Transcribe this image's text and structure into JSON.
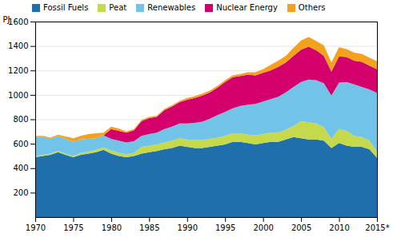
{
  "chart_data": {
    "type": "area",
    "stacked": true,
    "ylabel": "PJ",
    "x": [
      1970,
      1971,
      1972,
      1973,
      1974,
      1975,
      1976,
      1977,
      1978,
      1979,
      1980,
      1981,
      1982,
      1983,
      1984,
      1985,
      1986,
      1987,
      1988,
      1989,
      1990,
      1991,
      1992,
      1993,
      1994,
      1995,
      1996,
      1997,
      1998,
      1999,
      2000,
      2001,
      2002,
      2003,
      2004,
      2005,
      2006,
      2007,
      2008,
      2009,
      2010,
      2011,
      2012,
      2013,
      2014,
      2015
    ],
    "series": [
      {
        "name": "Fossil Fuels",
        "color": "#1f6fad",
        "values": [
          490,
          500,
          510,
          530,
          510,
          490,
          510,
          520,
          530,
          550,
          520,
          500,
          490,
          500,
          520,
          530,
          540,
          555,
          565,
          585,
          575,
          565,
          565,
          575,
          585,
          595,
          615,
          615,
          605,
          595,
          605,
          615,
          615,
          635,
          655,
          645,
          635,
          635,
          625,
          565,
          605,
          585,
          575,
          575,
          555,
          485
        ]
      },
      {
        "name": "Peat",
        "color": "#c5d94b",
        "values": [
          10,
          10,
          10,
          10,
          10,
          10,
          15,
          15,
          20,
          20,
          25,
          25,
          25,
          25,
          55,
          55,
          55,
          55,
          60,
          60,
          60,
          65,
          65,
          65,
          65,
          70,
          70,
          70,
          70,
          75,
          75,
          75,
          75,
          80,
          90,
          140,
          140,
          130,
          110,
          75,
          115,
          120,
          90,
          80,
          70,
          50
        ]
      },
      {
        "name": "Renewables",
        "color": "#72c3e8",
        "values": [
          155,
          145,
          120,
          125,
          120,
          115,
          110,
          105,
          95,
          100,
          95,
          100,
          95,
          95,
          90,
          95,
          95,
          110,
          115,
          120,
          130,
          140,
          150,
          165,
          185,
          195,
          205,
          225,
          245,
          255,
          265,
          275,
          295,
          305,
          320,
          320,
          350,
          355,
          360,
          355,
          380,
          400,
          420,
          410,
          420,
          480
        ]
      },
      {
        "name": "Nuclear Energy",
        "color": "#d4006b",
        "values": [
          0,
          0,
          0,
          0,
          0,
          0,
          0,
          0,
          0,
          0,
          80,
          80,
          80,
          90,
          120,
          130,
          130,
          155,
          165,
          175,
          195,
          205,
          215,
          215,
          225,
          245,
          255,
          245,
          245,
          235,
          235,
          235,
          245,
          245,
          255,
          265,
          270,
          245,
          225,
          195,
          215,
          205,
          195,
          205,
          195,
          195
        ]
      },
      {
        "name": "Others",
        "color": "#f5a11e",
        "values": [
          10,
          10,
          10,
          10,
          20,
          30,
          30,
          40,
          40,
          20,
          20,
          20,
          10,
          10,
          10,
          10,
          10,
          10,
          10,
          10,
          15,
          15,
          15,
          15,
          15,
          15,
          15,
          15,
          20,
          25,
          30,
          45,
          50,
          55,
          65,
          75,
          80,
          75,
          85,
          75,
          75,
          65,
          65,
          65,
          65,
          65
        ]
      }
    ],
    "xlim": [
      1970,
      2015
    ],
    "xticks": [
      1970,
      1975,
      1980,
      1985,
      1990,
      1995,
      2000,
      2005,
      2010,
      {
        "value": 2015,
        "label": "2015*"
      }
    ],
    "ylim": [
      0,
      1600
    ],
    "yticks": [
      200,
      400,
      600,
      800,
      1000,
      1200,
      1400,
      1600
    ],
    "grid": true,
    "legend": "upper left"
  }
}
